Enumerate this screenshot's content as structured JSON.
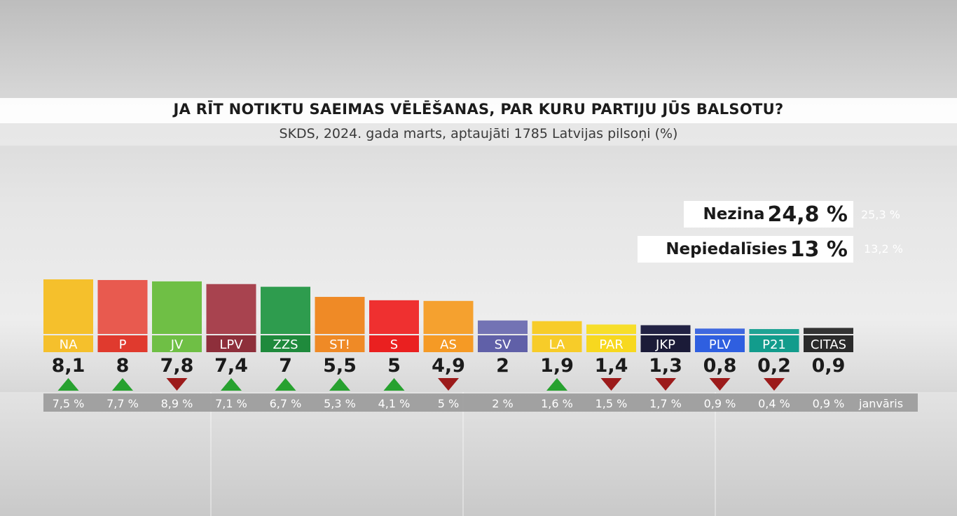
{
  "chart_data": {
    "type": "bar",
    "title": "JA RĪT NOTIKTU SAEIMAS VĒLĒŠANAS, PAR KURU PARTIJU JŪS BALSOTU?",
    "subtitle": "SKDS, 2024. gada marts, aptaujāti 1785 Latvijas pilsoņi (%)",
    "previous_label": "janvāris",
    "categories": [
      "NA",
      "P",
      "JV",
      "LPV",
      "ZZS",
      "ST!",
      "S",
      "AS",
      "SV",
      "LA",
      "PAR",
      "JKP",
      "PLV",
      "P21",
      "CITAS"
    ],
    "values": [
      8.1,
      8,
      7.8,
      7.4,
      7,
      5.5,
      5,
      4.9,
      2,
      1.9,
      1.4,
      1.3,
      0.8,
      0.2,
      0.9
    ],
    "value_labels": [
      "8,1",
      "8",
      "7,8",
      "7,4",
      "7",
      "5,5",
      "5",
      "4,9",
      "2",
      "1,9",
      "1,4",
      "1,3",
      "0,8",
      "0,2",
      "0,9"
    ],
    "previous_values": [
      7.5,
      7.7,
      8.9,
      7.1,
      6.7,
      5.3,
      4.1,
      5,
      2,
      1.6,
      1.5,
      1.7,
      0.9,
      0.4,
      0.9
    ],
    "previous_labels": [
      "7,5 %",
      "7,7 %",
      "8,9 %",
      "7,1 %",
      "6,7 %",
      "5,3 %",
      "4,1 %",
      "5 %",
      "2 %",
      "1,6 %",
      "1,5 %",
      "1,7 %",
      "0,9 %",
      "0,4 %",
      "0,9 %"
    ],
    "trend": [
      "up",
      "up",
      "down",
      "up",
      "up",
      "up",
      "up",
      "down",
      "none",
      "up",
      "down",
      "down",
      "down",
      "down",
      "none"
    ],
    "colors": [
      "#f5c02c",
      "#e85a4f",
      "#6fbf45",
      "#a8434f",
      "#2e9c4e",
      "#ef8a26",
      "#ef3030",
      "#f5a12f",
      "#7373b4",
      "#f7cc29",
      "#f7de2a",
      "#222244",
      "#3f68df",
      "#1fa394",
      "#333333"
    ],
    "label_colors": [
      "#f5c02c",
      "#e03a2e",
      "#6fbf45",
      "#8e2f3b",
      "#1f8a3c",
      "#ef8a26",
      "#ea2020",
      "#f59a25",
      "#6060a8",
      "#f7cc29",
      "#f7d81f",
      "#1b1b38",
      "#2f5fe0",
      "#129c8c",
      "#2a2a2a"
    ],
    "ylim": [
      0,
      8.1
    ],
    "extra": [
      {
        "label": "Nezina",
        "value_label": "24,8 %",
        "previous_label": "25,3 %"
      },
      {
        "label": "Nepiedalīsies",
        "value_label": "13 %",
        "previous_label": "13,2 %"
      }
    ]
  }
}
